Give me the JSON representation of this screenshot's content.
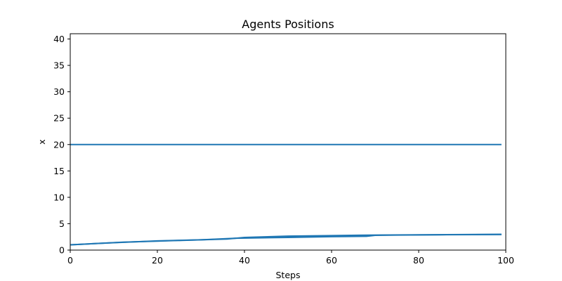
{
  "chart_data": {
    "type": "line",
    "title": "Agents Positions",
    "xlabel": "Steps",
    "ylabel": "x",
    "xlim": [
      0,
      100
    ],
    "ylim": [
      0,
      41
    ],
    "xticks": [
      0,
      20,
      40,
      60,
      80,
      100
    ],
    "yticks": [
      0,
      5,
      10,
      15,
      20,
      25,
      30,
      35,
      40
    ],
    "grid": false,
    "legend": "none",
    "line_color": "#1f77b4",
    "series": [
      {
        "x": [
          0,
          99
        ],
        "values": [
          20,
          20
        ]
      },
      {
        "x": [
          0,
          10,
          20,
          30,
          36,
          40,
          50,
          60,
          70,
          80,
          90,
          99
        ],
        "values": [
          1.0,
          1.4,
          1.75,
          1.95,
          2.1,
          2.4,
          2.65,
          2.75,
          2.85,
          2.9,
          2.95,
          3.0
        ]
      },
      {
        "x": [
          0,
          12,
          20,
          30,
          38,
          50,
          60,
          68,
          70,
          75,
          85,
          99
        ],
        "values": [
          1.0,
          1.5,
          1.7,
          1.95,
          2.25,
          2.4,
          2.55,
          2.62,
          2.8,
          2.85,
          2.9,
          2.95
        ]
      }
    ]
  }
}
